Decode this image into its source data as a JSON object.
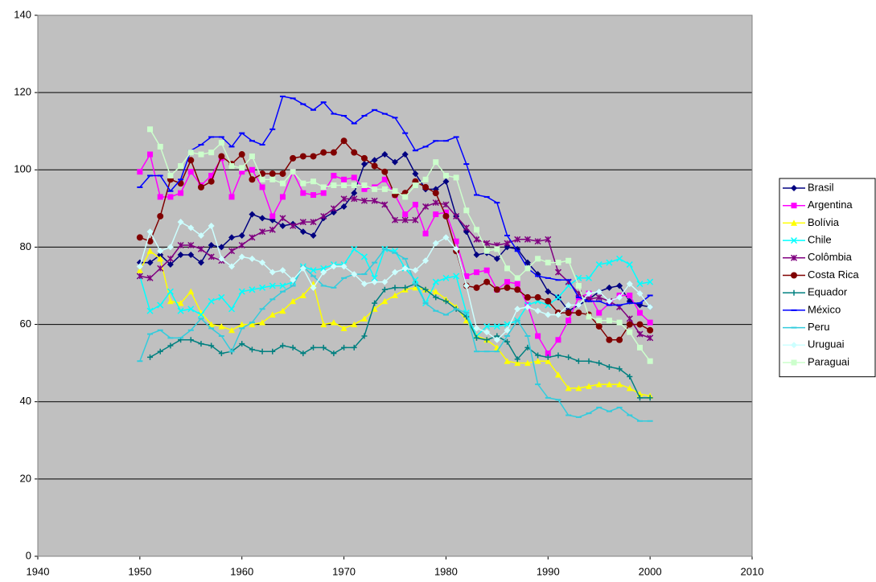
{
  "chart_data": {
    "type": "line",
    "x": [
      1950,
      1951,
      1952,
      1953,
      1954,
      1955,
      1956,
      1957,
      1958,
      1959,
      1960,
      1961,
      1962,
      1963,
      1964,
      1965,
      1966,
      1967,
      1968,
      1969,
      1970,
      1971,
      1972,
      1973,
      1974,
      1975,
      1976,
      1977,
      1978,
      1979,
      1980,
      1981,
      1982,
      1983,
      1984,
      1985,
      1986,
      1987,
      1988,
      1989,
      1990,
      1991,
      1992,
      1993,
      1994,
      1995,
      1996,
      1997,
      1998,
      1999,
      2000
    ],
    "xlim": [
      1940,
      2010
    ],
    "xticks": [
      1940,
      1950,
      1960,
      1970,
      1980,
      1990,
      2000,
      2010
    ],
    "ylim": [
      0,
      140
    ],
    "yticks": [
      0,
      20,
      40,
      60,
      80,
      100,
      120,
      140
    ],
    "grid": true,
    "background": "#c0c0c0",
    "legend": "right",
    "series": [
      {
        "name": "Brasil",
        "color": "#000080",
        "marker": "diamond",
        "values": [
          76,
          76,
          78,
          75.5,
          78,
          78,
          76,
          80.5,
          80,
          82.5,
          83,
          88.5,
          87.5,
          87,
          85.5,
          86,
          84,
          83,
          87.5,
          89,
          90.5,
          94,
          101.5,
          102.5,
          104,
          102,
          104,
          99,
          95,
          95,
          97,
          88,
          84,
          78,
          78.5,
          77,
          80,
          79.5,
          76,
          73,
          68.5,
          67,
          63.5,
          65,
          66.5,
          68.5,
          69.5,
          70,
          66,
          65,
          64.5
        ]
      },
      {
        "name": "Argentina",
        "color": "#ff00ff",
        "marker": "square",
        "values": [
          99.5,
          104,
          93,
          93,
          94,
          99.5,
          96,
          98.5,
          103,
          93,
          99.5,
          100,
          95.5,
          88,
          93,
          99.5,
          94,
          93.5,
          94,
          98.5,
          97.5,
          98,
          95,
          95.5,
          97.5,
          93.5,
          88.5,
          91,
          83.5,
          88.5,
          89,
          81.5,
          72.5,
          73.5,
          74,
          69,
          71,
          70.5,
          65,
          57,
          52.5,
          56,
          61,
          67,
          68,
          63,
          65.5,
          67.5,
          67.5,
          63,
          60.5
        ]
      },
      {
        "name": "Bolívia",
        "color": "#ffff00",
        "marker": "triangle",
        "values": [
          74,
          79,
          77,
          66,
          65.5,
          68.5,
          63,
          60,
          59.5,
          58.5,
          60,
          60,
          60.5,
          62.5,
          63.5,
          66,
          67.5,
          70.5,
          60,
          60.5,
          59,
          60,
          61.5,
          64,
          66,
          67.5,
          69,
          69.5,
          69,
          68.5,
          66.5,
          64.5,
          61,
          57,
          56,
          54,
          50.5,
          50,
          50,
          50.5,
          50.5,
          47,
          43.5,
          43.5,
          44,
          44.5,
          44.5,
          44.5,
          43.5,
          42,
          41.5
        ]
      },
      {
        "name": "Chile",
        "color": "#00ffff",
        "marker": "x",
        "values": [
          72.5,
          63.5,
          65,
          68.5,
          63.5,
          64,
          62.5,
          66,
          67,
          64,
          68.5,
          69,
          69.5,
          70,
          70,
          71,
          75,
          74,
          74.5,
          75.5,
          75.5,
          79.5,
          77.5,
          72,
          79.5,
          79,
          74.5,
          71.5,
          65.5,
          71,
          72,
          72.5,
          63,
          57,
          59.5,
          59.5,
          60,
          61,
          65,
          66,
          65,
          67,
          70,
          72,
          72,
          75.5,
          76,
          77,
          75.5,
          70.5,
          71
        ]
      },
      {
        "name": "Colômbia",
        "color": "#800080",
        "marker": "star",
        "values": [
          72.5,
          72,
          74.5,
          77,
          80.5,
          80.5,
          79.5,
          77.5,
          76.5,
          79,
          80.5,
          82.5,
          84,
          84.5,
          87.5,
          85.5,
          86.5,
          86.5,
          88,
          90,
          92.5,
          92.5,
          92,
          92,
          91,
          87,
          87,
          87,
          90.5,
          91.5,
          91,
          88,
          85,
          82,
          81,
          80.5,
          81,
          82,
          82,
          81.5,
          82,
          73.5,
          71,
          68,
          66.5,
          67,
          66,
          64.5,
          61.5,
          57.5,
          56.5
        ]
      },
      {
        "name": "Costa Rica",
        "color": "#800000",
        "marker": "circle",
        "values": [
          82.5,
          81.5,
          88,
          97.5,
          96.5,
          102.5,
          95.5,
          97,
          103.5,
          101.5,
          104,
          97.5,
          99,
          99,
          99,
          103,
          103.5,
          103.5,
          104.5,
          104.5,
          107.5,
          104.5,
          103,
          101,
          99.5,
          93.5,
          94,
          97,
          95.5,
          94,
          88,
          79,
          70,
          69.5,
          71,
          69,
          69.5,
          69,
          67,
          67,
          66,
          63,
          63,
          63,
          62.5,
          59.5,
          56,
          56,
          60,
          60,
          58.5
        ]
      },
      {
        "name": "Equador",
        "color": "#008080",
        "marker": "plus",
        "values": [
          null,
          51.5,
          53,
          54.5,
          56,
          56,
          55,
          54.5,
          52.5,
          53,
          55,
          53.5,
          53,
          53,
          54.5,
          54,
          52.5,
          54,
          54,
          52.5,
          54,
          54,
          57,
          65.5,
          69,
          69.5,
          69.5,
          70.5,
          69,
          67,
          66,
          64,
          62,
          56.5,
          56,
          57,
          55.5,
          51,
          54,
          52,
          51.5,
          52,
          51.5,
          50.5,
          50.5,
          50,
          49,
          48.5,
          46.5,
          41,
          41
        ]
      },
      {
        "name": "México",
        "color": "#0000ff",
        "marker": "dash",
        "values": [
          95.5,
          98.5,
          98.5,
          94.5,
          97.5,
          105,
          106.5,
          108.5,
          108.5,
          106,
          109.5,
          107.5,
          106.5,
          110.5,
          119,
          118.5,
          117,
          115.5,
          117.5,
          114.5,
          114,
          112,
          114,
          115.5,
          114.5,
          113.5,
          109.5,
          105,
          106,
          107.5,
          107.5,
          108.5,
          101.5,
          93.5,
          93,
          91.5,
          83,
          79,
          74.5,
          72.5,
          72,
          71.5,
          71.5,
          67,
          66,
          66,
          65,
          65,
          65.5,
          65.5,
          67.5
        ]
      },
      {
        "name": "Peru",
        "color": "#33ccdd",
        "marker": "dash",
        "values": [
          50.5,
          57.5,
          58.5,
          56.5,
          56.5,
          58.5,
          61.5,
          59,
          57,
          53,
          59,
          60.5,
          64,
          66.5,
          68.5,
          70,
          75,
          72.5,
          70,
          69.5,
          72,
          73,
          73,
          76,
          79.5,
          78.5,
          77,
          70.5,
          65.5,
          63.5,
          62.5,
          64,
          63,
          53,
          53,
          53,
          57,
          61,
          57,
          44.5,
          41,
          40.5,
          36.5,
          36,
          37,
          38.5,
          37.5,
          38.5,
          36.5,
          35,
          35
        ]
      },
      {
        "name": "Uruguai",
        "color": "#ccffff",
        "marker": "diamond",
        "values": [
          75,
          84,
          79,
          80,
          86.5,
          85,
          83,
          85.5,
          77,
          75,
          77.5,
          77,
          76,
          73.5,
          74,
          71.5,
          74.5,
          69.5,
          73.5,
          75,
          75,
          73,
          70.5,
          71,
          71,
          73.5,
          74.5,
          74,
          76.5,
          81,
          82.5,
          79.5,
          70,
          59,
          58,
          56,
          58.5,
          64,
          64.5,
          63.5,
          62.5,
          62.5,
          65,
          65,
          68,
          68.5,
          66,
          67,
          70.5,
          68,
          64.5
        ]
      },
      {
        "name": "Paraguai",
        "color": "#ccffcc",
        "marker": "square",
        "values": [
          null,
          110.5,
          106,
          98.5,
          101,
          104.5,
          104,
          104.5,
          107,
          101,
          100.5,
          103.5,
          97.5,
          97.5,
          96.5,
          99.5,
          96.5,
          97,
          95.5,
          96,
          96,
          96,
          96,
          95,
          95,
          94.5,
          93,
          96,
          97.5,
          102,
          98.5,
          98,
          89.5,
          84.5,
          79,
          79.5,
          74.5,
          72,
          74.5,
          77,
          76,
          76,
          76.5,
          70,
          62,
          61,
          61,
          60.5,
          58,
          54,
          50.5
        ]
      }
    ]
  }
}
